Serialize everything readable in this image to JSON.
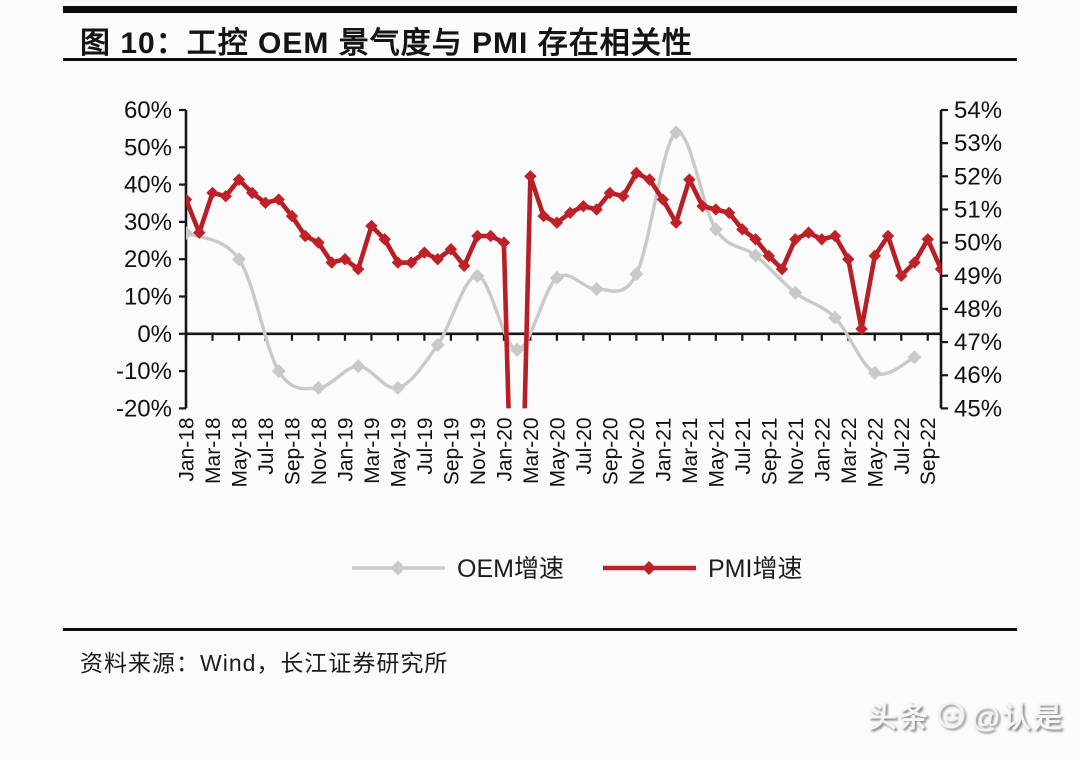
{
  "header": {
    "title": "图 10：工控 OEM 景气度与 PMI 存在相关性"
  },
  "footer": {
    "source": "资料来源：Wind，长江证券研究所"
  },
  "watermark": {
    "text_left": "头条",
    "text_right": "@认是",
    "logo_icon": "toutiao-face-icon"
  },
  "chart_data": {
    "type": "line",
    "title": "工控 OEM 景气度与 PMI 存在相关性",
    "x_freq": "monthly",
    "months": [
      "Jan-18",
      "Feb-18",
      "Mar-18",
      "Apr-18",
      "May-18",
      "Jun-18",
      "Jul-18",
      "Aug-18",
      "Sep-18",
      "Oct-18",
      "Nov-18",
      "Dec-18",
      "Jan-19",
      "Feb-19",
      "Mar-19",
      "Apr-19",
      "May-19",
      "Jun-19",
      "Jul-19",
      "Aug-19",
      "Sep-19",
      "Oct-19",
      "Nov-19",
      "Dec-19",
      "Jan-20",
      "Feb-20",
      "Mar-20",
      "Apr-20",
      "May-20",
      "Jun-20",
      "Jul-20",
      "Aug-20",
      "Sep-20",
      "Oct-20",
      "Nov-20",
      "Dec-20",
      "Jan-21",
      "Feb-21",
      "Mar-21",
      "Apr-21",
      "May-21",
      "Jun-21",
      "Jul-21",
      "Aug-21",
      "Sep-21",
      "Oct-21",
      "Nov-21",
      "Dec-21",
      "Jan-22",
      "Feb-22",
      "Mar-22",
      "Apr-22",
      "May-22",
      "Jun-22",
      "Jul-22",
      "Aug-22",
      "Sep-22",
      "Oct-22"
    ],
    "x_tick_labels": [
      "Jan-18",
      "Mar-18",
      "May-18",
      "Jul-18",
      "Sep-18",
      "Nov-18",
      "Jan-19",
      "Mar-19",
      "May-19",
      "Jul-19",
      "Sep-19",
      "Nov-19",
      "Jan-20",
      "Mar-20",
      "May-20",
      "Jul-20",
      "Sep-20",
      "Nov-20",
      "Jan-21",
      "Mar-21",
      "May-21",
      "Jul-21",
      "Sep-21",
      "Nov-21",
      "Jan-22",
      "Mar-22",
      "May-22",
      "Jul-22",
      "Sep-22"
    ],
    "x_tick_every": 2,
    "left_axis": {
      "min": -20,
      "max": 60,
      "step": 10,
      "tick_labels": [
        "60%",
        "50%",
        "40%",
        "30%",
        "20%",
        "10%",
        "0%",
        "-10%",
        "-20%"
      ]
    },
    "right_axis": {
      "min": 45,
      "max": 54,
      "step": 1,
      "tick_labels": [
        "54%",
        "53%",
        "52%",
        "51%",
        "50%",
        "49%",
        "48%",
        "47%",
        "46%",
        "45%"
      ]
    },
    "series": [
      {
        "name": "OEM增速",
        "axis": "left",
        "color": "#c9c9c9",
        "marker": "diamond",
        "style": "smooth",
        "month_index": [
          0,
          4,
          7,
          10,
          13,
          16,
          19,
          22,
          25,
          28,
          31,
          34,
          37,
          40,
          43,
          46,
          49,
          52,
          55
        ],
        "values": [
          27,
          20,
          -10,
          -14.5,
          -8.7,
          -14.5,
          -3,
          15.5,
          -4.3,
          15,
          12,
          16,
          54,
          28,
          21,
          11,
          4.3,
          -10.5,
          -6.3
        ]
      },
      {
        "name": "PMI增速",
        "axis": "right",
        "color": "#c02027",
        "marker": "diamond",
        "style": "straight",
        "values": [
          51.3,
          50.3,
          51.5,
          51.4,
          51.9,
          51.5,
          51.2,
          51.3,
          50.8,
          50.2,
          50.0,
          49.4,
          49.5,
          49.2,
          50.5,
          50.1,
          49.4,
          49.4,
          49.7,
          49.5,
          49.8,
          49.3,
          50.2,
          50.2,
          50.0,
          35.7,
          52.0,
          50.8,
          50.6,
          50.9,
          51.1,
          51.0,
          51.5,
          51.4,
          52.1,
          51.9,
          51.3,
          50.6,
          51.9,
          51.1,
          51.0,
          50.9,
          50.4,
          50.1,
          49.6,
          49.2,
          50.1,
          50.3,
          50.1,
          50.2,
          49.5,
          47.4,
          49.6,
          50.2,
          49.0,
          49.4,
          50.1,
          49.2
        ]
      }
    ],
    "legend_position": "bottom",
    "grid": false
  }
}
